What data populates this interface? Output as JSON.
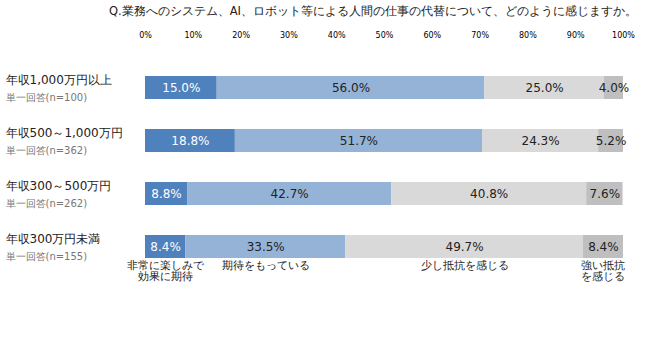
{
  "chart_data": {
    "type": "bar",
    "title": "Q.業務へのシステム、AI、ロボット等による人間の仕事の代替について、どのように感じますか。",
    "orientation": "horizontal",
    "stacked": true,
    "data_labels": true,
    "grid": false,
    "legend": "bottom",
    "categories": [
      "年収1,000万円以上",
      "年収500～1,000万円",
      "年収300～500万円",
      "年収300万円未満"
    ],
    "category_subtitles": [
      "単一回答(n=100)",
      "単一回答(n=362)",
      "単一回答(n=262)",
      "単一回答(n=155)"
    ],
    "xlim": [
      0,
      100
    ],
    "xticks": [
      {
        "value": 0,
        "label": "0%"
      },
      {
        "value": 10,
        "label": "10%"
      },
      {
        "value": 20,
        "label": "20%"
      },
      {
        "value": 30,
        "label": "30%"
      },
      {
        "value": 40,
        "label": "40%"
      },
      {
        "value": 50,
        "label": "50%"
      },
      {
        "value": 60,
        "label": "60%"
      },
      {
        "value": 70,
        "label": "70%"
      },
      {
        "value": 80,
        "label": "80%"
      },
      {
        "value": 90,
        "label": "90%"
      },
      {
        "value": 100,
        "label": "100%"
      }
    ],
    "series": [
      {
        "name": "非常に楽しみで\n効果に期待",
        "color": "#4f81bd",
        "values": [
          15.0,
          18.8,
          8.8,
          8.4
        ],
        "value_labels": [
          "15.0%",
          "18.8%",
          "8.8%",
          "8.4%"
        ]
      },
      {
        "name": "期待をもっている",
        "color": "#95b3d7",
        "values": [
          56.0,
          51.7,
          42.7,
          33.5
        ],
        "value_labels": [
          "56.0%",
          "51.7%",
          "42.7%",
          "33.5%"
        ]
      },
      {
        "name": "少し抵抗を感じる",
        "color": "#d9d9d9",
        "values": [
          25.0,
          24.3,
          40.8,
          49.7
        ],
        "value_labels": [
          "25.0%",
          "24.3%",
          "40.8%",
          "49.7%"
        ]
      },
      {
        "name": "強い抵抗\nを感じる",
        "color": "#bfbfbf",
        "values": [
          4.0,
          5.2,
          7.6,
          8.4
        ],
        "value_labels": [
          "4.0%",
          "5.2%",
          "7.6%",
          "8.4%"
        ]
      }
    ]
  }
}
